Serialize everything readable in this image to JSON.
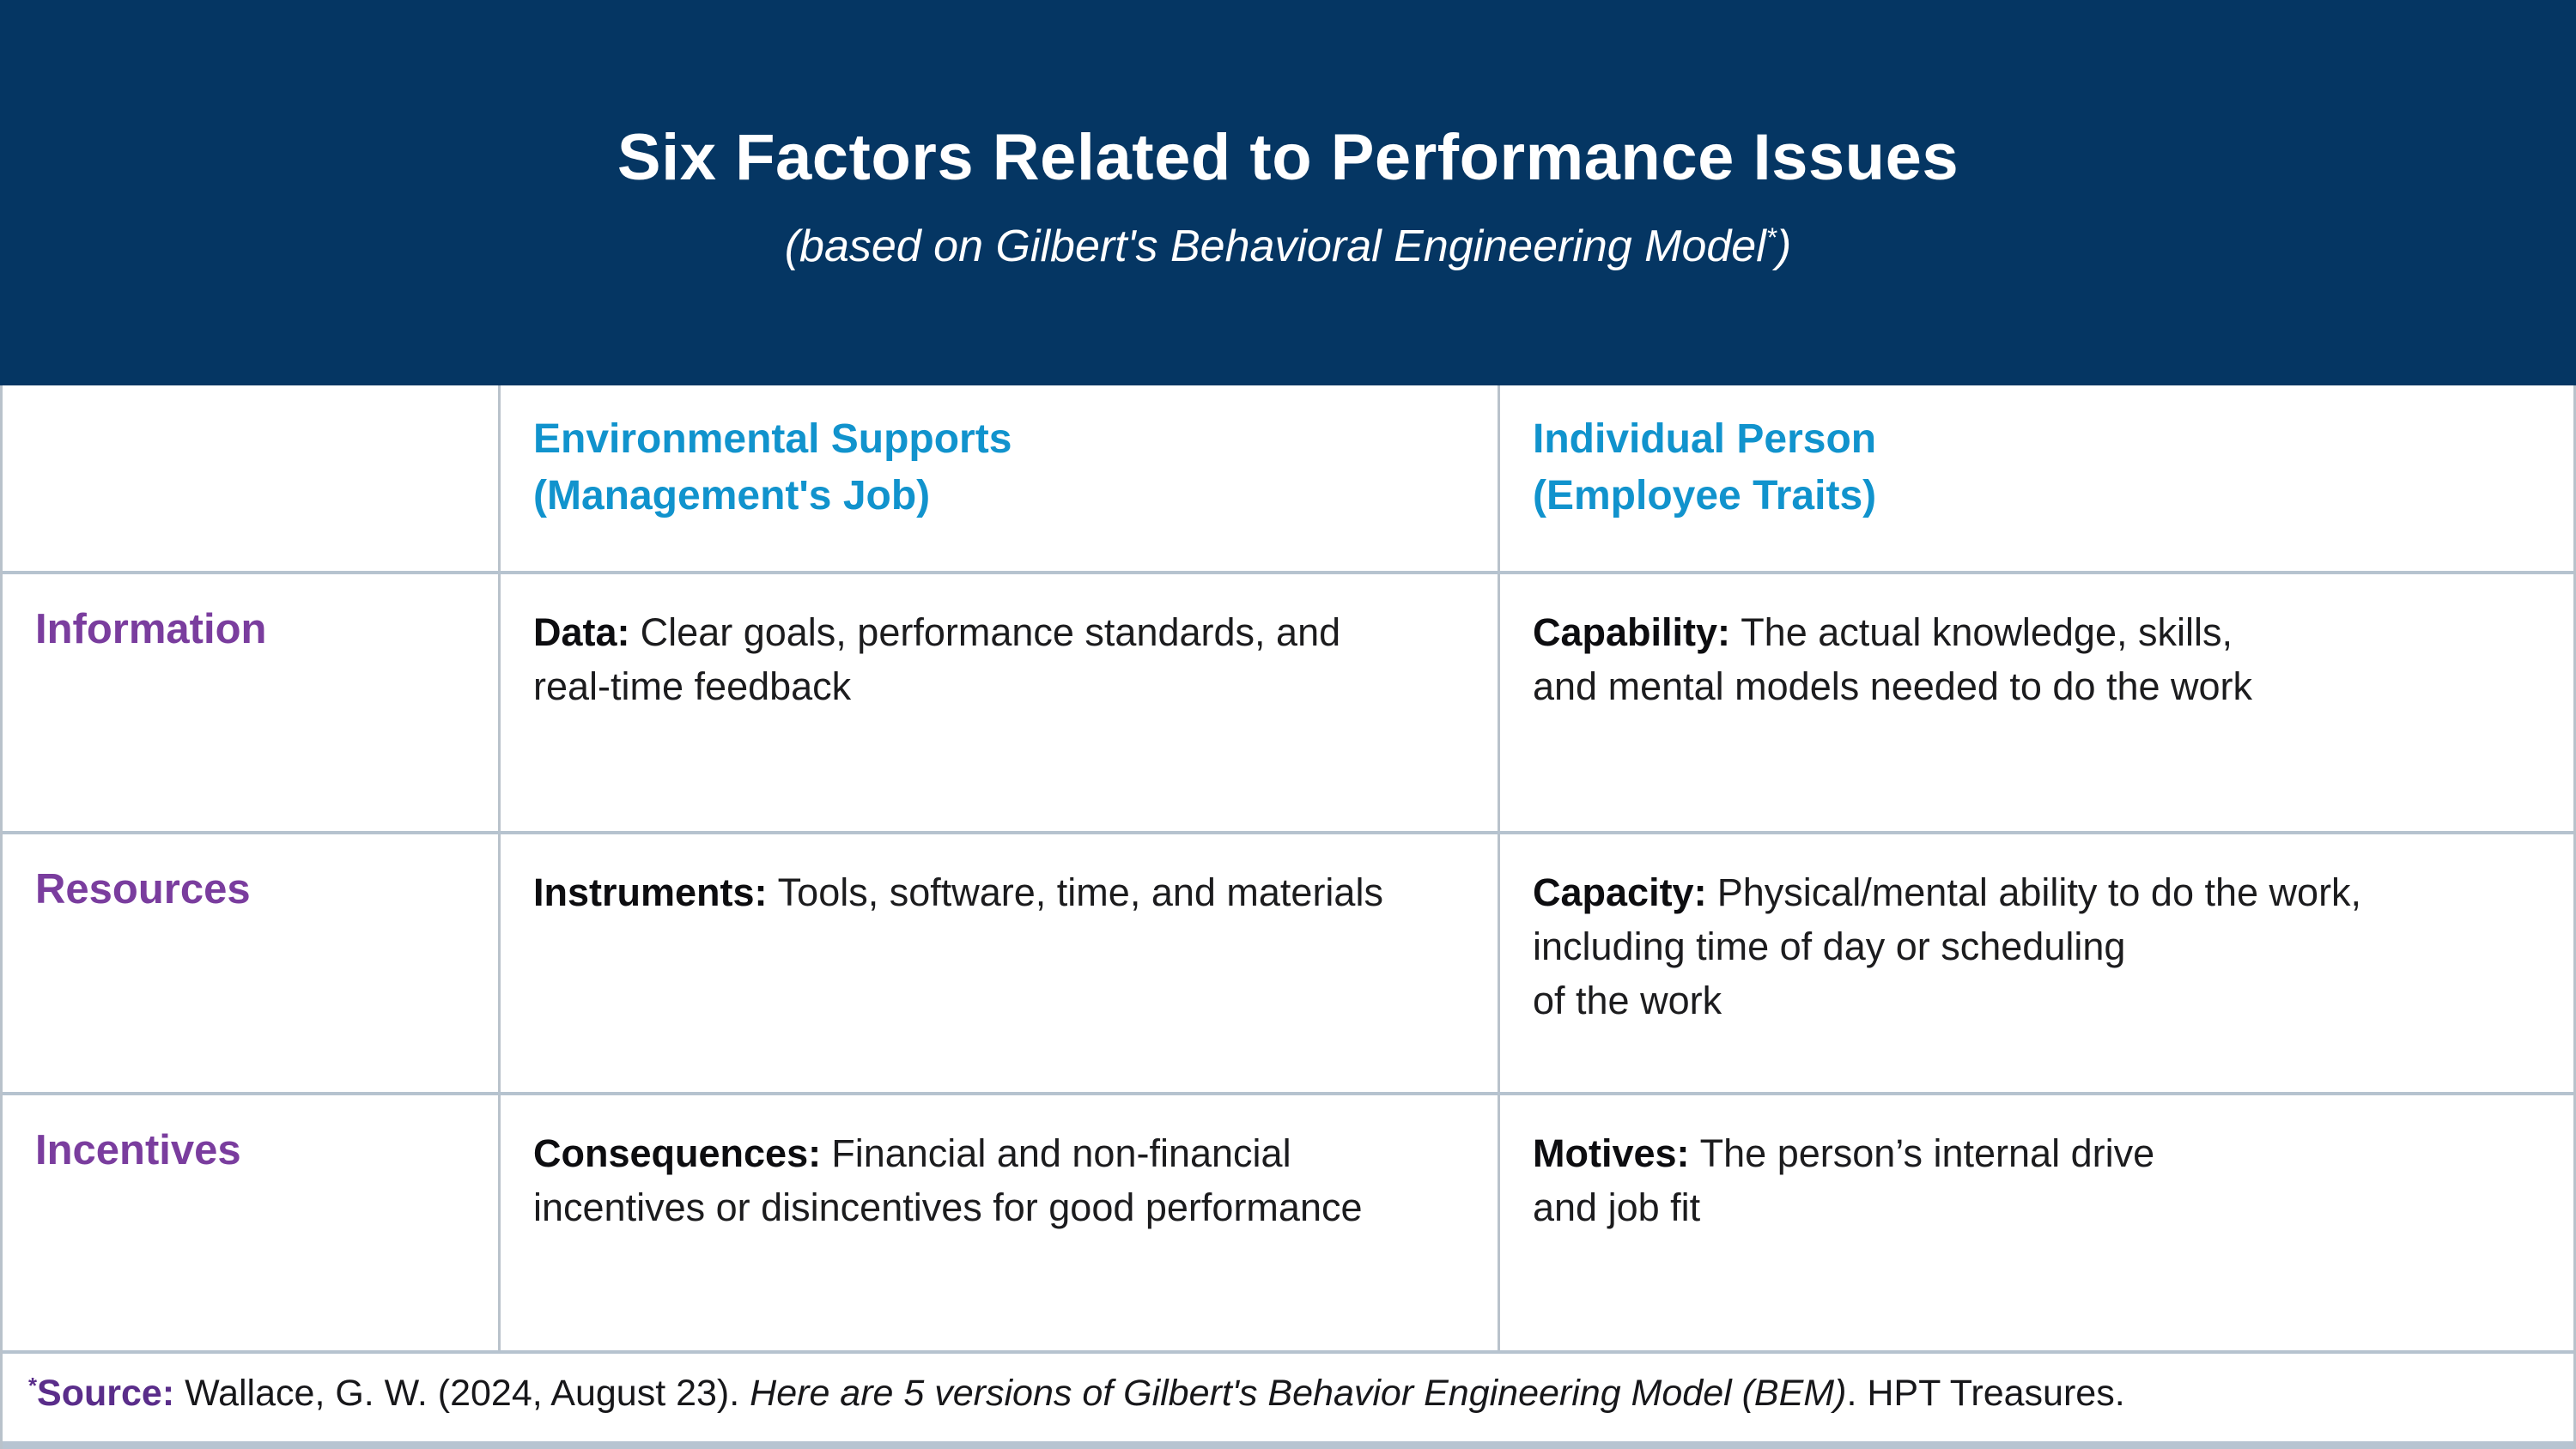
{
  "banner": {
    "title": "Six Factors Related to Performance Issues",
    "subtitle_pre": "(based on Gilbert's Behavioral Engineering Model",
    "subtitle_sup": "*",
    "subtitle_post": ")"
  },
  "table": {
    "columns": [
      {
        "header_lines": [
          "Environmental Supports",
          "(Management's Job)"
        ]
      },
      {
        "header_lines": [
          "Individual Person",
          "(Employee Traits)"
        ]
      }
    ],
    "rows": [
      {
        "label": "Information",
        "env": {
          "term": "Data:",
          "lines": [
            "Clear goals, performance standards, and",
            "real-time feedback"
          ]
        },
        "ind": {
          "term": "Capability:",
          "lines": [
            "The actual knowledge, skills,",
            "and mental models needed to do the work"
          ]
        }
      },
      {
        "label": "Resources",
        "env": {
          "term": "Instruments:",
          "lines": [
            "Tools, software, time, and materials"
          ]
        },
        "ind": {
          "term": "Capacity:",
          "lines": [
            "Physical/mental ability to do the work,",
            "including time of day or scheduling",
            "of the work"
          ]
        }
      },
      {
        "label": "Incentives",
        "env": {
          "term": "Consequences:",
          "lines": [
            "Financial and non-financial",
            "incentives or disincentives for good performance"
          ]
        },
        "ind": {
          "term": "Motives:",
          "lines": [
            "The person’s internal drive",
            "and job fit"
          ]
        }
      }
    ]
  },
  "footer": {
    "sup": "*",
    "label": "Source:",
    "citation_plain": " Wallace, G. W. (2024, August 23). ",
    "citation_italic": "Here are 5 versions of Gilbert's Behavior Engineering Model (BEM)",
    "citation_tail": ". HPT Treasures."
  },
  "colors": {
    "banner_navy": "#053663",
    "column_header_cyan": "#1193cd",
    "row_label_purple": "#7a3d9e",
    "source_purple": "#5a2d8a",
    "grid_border": "#b6c3cf",
    "body_text": "#1c1c1e"
  },
  "chart_data": {
    "type": "table",
    "title": "Six Factors Related to Performance Issues",
    "subtitle": "(based on Gilbert's Behavioral Engineering Model*)",
    "columns": [
      "",
      "Environmental Supports (Management's Job)",
      "Individual Person (Employee Traits)"
    ],
    "rows": [
      [
        "Information",
        "Data: Clear goals, performance standards, and real-time feedback",
        "Capability: The actual knowledge, skills, and mental models needed to do the work"
      ],
      [
        "Resources",
        "Instruments: Tools, software, time, and materials",
        "Capacity: Physical/mental ability to do the work, including time of day or scheduling of the work"
      ],
      [
        "Incentives",
        "Consequences: Financial and non-financial incentives or disincentives for good performance",
        "Motives: The person’s internal drive and job fit"
      ]
    ],
    "source_note": "*Source: Wallace, G. W. (2024, August 23). Here are 5 versions of Gilbert's Behavior Engineering Model (BEM). HPT Treasures.",
    "layout": "matrix table; header row cyan, row labels purple, bold lead-in terms in cells"
  }
}
